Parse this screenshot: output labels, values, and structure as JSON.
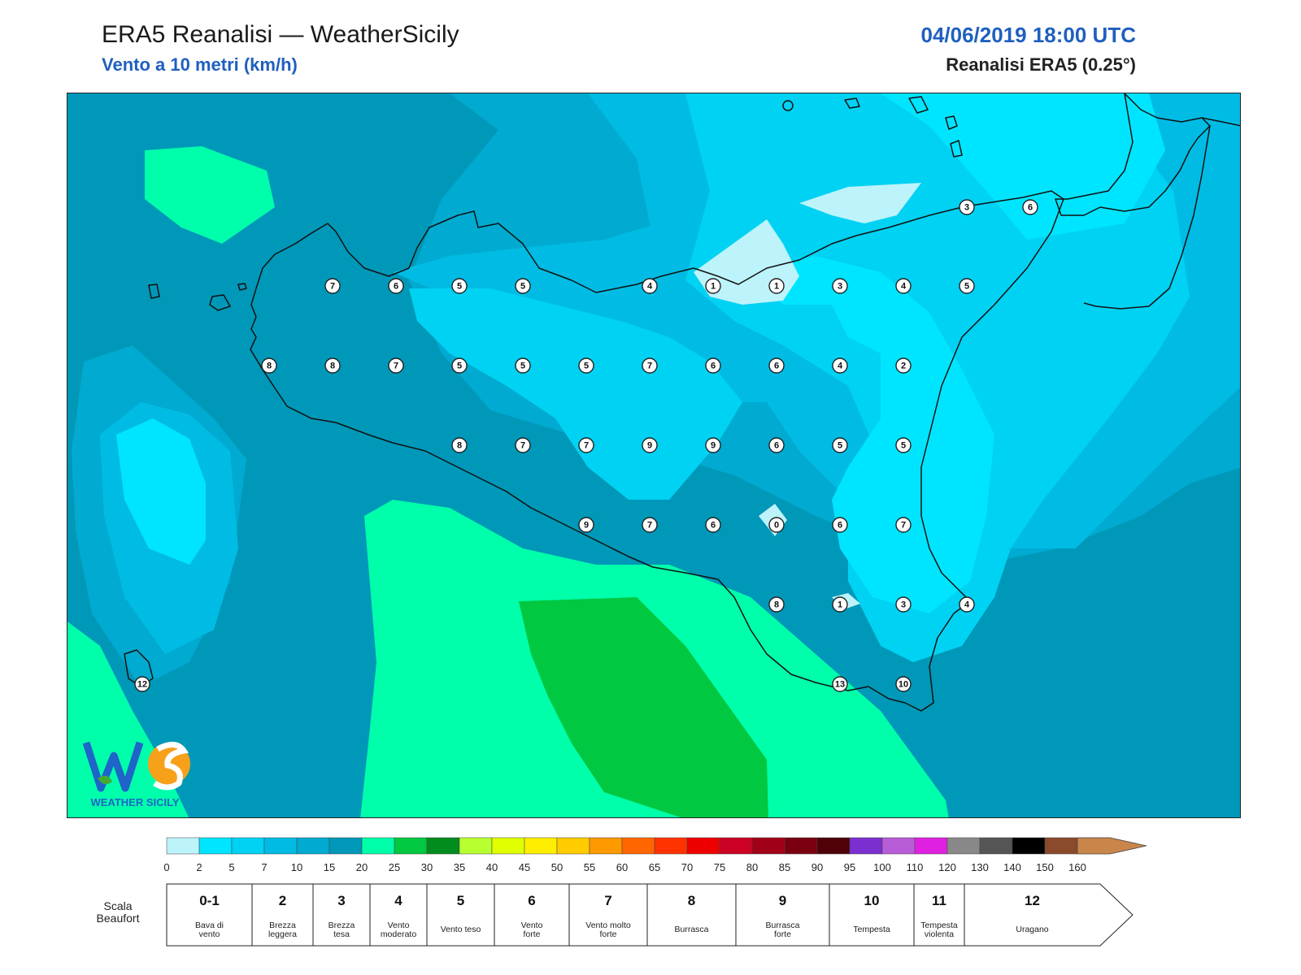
{
  "header": {
    "title": "ERA5 Reanalisi — WeatherSicily",
    "subtitle": "Vento a 10 metri (km/h)",
    "datetime": "04/06/2019 18:00 UTC",
    "source": "Reanalisi ERA5 (0.25°)"
  },
  "colors": {
    "c0": "#bdf3fb",
    "c2": "#00e5ff",
    "c5": "#00d2f3",
    "c7": "#00bce4",
    "c10": "#00aad0",
    "c15": "#0098b8",
    "c20": "#00ffaa",
    "c25": "#00c840",
    "land_border": "#111111"
  },
  "colorbar": {
    "ticks": [
      "0",
      "2",
      "5",
      "7",
      "10",
      "15",
      "20",
      "25",
      "30",
      "35",
      "40",
      "45",
      "50",
      "55",
      "60",
      "65",
      "70",
      "75",
      "80",
      "85",
      "90",
      "95",
      "100",
      "110",
      "120",
      "130",
      "140",
      "150",
      "160"
    ],
    "colors": [
      "#bdf3fb",
      "#00e5ff",
      "#00d2f3",
      "#00bce4",
      "#00aad0",
      "#0098b8",
      "#00ffaa",
      "#00c840",
      "#008c1e",
      "#b8ff30",
      "#e0ff00",
      "#ffee00",
      "#ffcc00",
      "#ff9900",
      "#ff6600",
      "#ff3300",
      "#ee0000",
      "#cc0022",
      "#a00018",
      "#7a0010",
      "#500008",
      "#7b2fd0",
      "#b85cd8",
      "#e020e0",
      "#888888",
      "#555555",
      "#000000",
      "#8b4a2c",
      "#c9864a"
    ]
  },
  "beaufort": {
    "scale_label_1": "Scala",
    "scale_label_2": "Beaufort",
    "classes": [
      {
        "num": "0-1",
        "d1": "Bava di",
        "d2": "vento"
      },
      {
        "num": "2",
        "d1": "Brezza",
        "d2": "leggera"
      },
      {
        "num": "3",
        "d1": "Brezza",
        "d2": "tesa"
      },
      {
        "num": "4",
        "d1": "Vento",
        "d2": "moderato"
      },
      {
        "num": "5",
        "d1": "Vento teso",
        "d2": ""
      },
      {
        "num": "6",
        "d1": "Vento",
        "d2": "forte"
      },
      {
        "num": "7",
        "d1": "Vento molto",
        "d2": "forte"
      },
      {
        "num": "8",
        "d1": "Burrasca",
        "d2": ""
      },
      {
        "num": "9",
        "d1": "Burrasca",
        "d2": "forte"
      },
      {
        "num": "10",
        "d1": "Tempesta",
        "d2": ""
      },
      {
        "num": "11",
        "d1": "Tempesta",
        "d2": "violenta"
      },
      {
        "num": "12",
        "d1": "Uragano",
        "d2": ""
      }
    ]
  },
  "logo": {
    "letters": "WS",
    "name": "WEATHER SICILY"
  },
  "points": [
    {
      "v": "7"
    },
    {
      "v": "6"
    },
    {
      "v": "5"
    },
    {
      "v": "5"
    },
    {
      "v": "4"
    },
    {
      "v": "1"
    },
    {
      "v": "1"
    },
    {
      "v": "3"
    },
    {
      "v": "4"
    },
    {
      "v": "5"
    },
    {
      "v": "8"
    },
    {
      "v": "8"
    },
    {
      "v": "7"
    },
    {
      "v": "5"
    },
    {
      "v": "5"
    },
    {
      "v": "5"
    },
    {
      "v": "7"
    },
    {
      "v": "6"
    },
    {
      "v": "6"
    },
    {
      "v": "4"
    },
    {
      "v": "2"
    },
    {
      "v": "8"
    },
    {
      "v": "7"
    },
    {
      "v": "7"
    },
    {
      "v": "9"
    },
    {
      "v": "9"
    },
    {
      "v": "6"
    },
    {
      "v": "5"
    },
    {
      "v": "5"
    },
    {
      "v": "9"
    },
    {
      "v": "7"
    },
    {
      "v": "6"
    },
    {
      "v": "0"
    },
    {
      "v": "6"
    },
    {
      "v": "7"
    },
    {
      "v": "8"
    },
    {
      "v": "1"
    },
    {
      "v": "3"
    },
    {
      "v": "4"
    },
    {
      "v": "13"
    },
    {
      "v": "10"
    },
    {
      "v": "12"
    },
    {
      "v": "3"
    },
    {
      "v": "6"
    }
  ]
}
